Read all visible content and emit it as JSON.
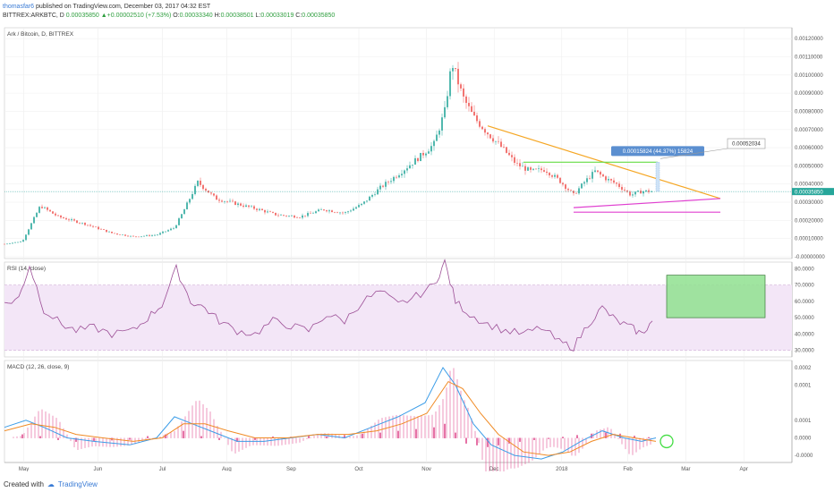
{
  "header": {
    "author": "thomasfar6",
    "published": "published on TradingView.com, December 03, 2017 04:32 EST",
    "symbol": "BITTREX:ARKBTC, D",
    "last": "0.00035850",
    "change": "+0.00002510 (+7.53%)",
    "o_label": "O:",
    "o": "0.00033340",
    "h_label": "H:",
    "h": "0.00038501",
    "l_label": "L:",
    "l": "0.00033019",
    "c_label": "C:",
    "c": "0.00035850"
  },
  "footer": {
    "created": "Created with",
    "brand": "TradingView"
  },
  "colors": {
    "up": "#26a69a",
    "down": "#ef5350",
    "triangle_top": "#f5a623",
    "triangle_bottom": "#e040d0",
    "resistance": "#66dd44",
    "rsi": "#9c4f96",
    "rsi_band": "#f3e6f7",
    "macd": "#3c9de8",
    "signal": "#f08a24",
    "hist": "#e05090"
  },
  "chart_data": [
    {
      "type": "candlestick",
      "title": "Ark / Bitcoin, D, BITTREX",
      "x_ticks": [
        "May",
        "Jun",
        "Jul",
        "Aug",
        "Sep",
        "Oct",
        "Nov",
        "Dec",
        "2018",
        "Feb",
        "Mar",
        "Apr"
      ],
      "y_ticks": [
        "0.00120000",
        "0.00110000",
        "0.00100000",
        "0.00090000",
        "0.00080000",
        "0.00070000",
        "0.00060000",
        "0.00050000",
        "0.00040000",
        "0.00030000",
        "0.00020000",
        "0.00010000",
        "-0.00000000"
      ],
      "ylim": [
        -1e-05,
        0.00126
      ],
      "last_price_label": "0.00035850",
      "last_price": 0.0003585,
      "price_range_label": "0.00015824 (44.37%) 15824",
      "callout_label": "0.00052034",
      "trend_path": [
        [
          0,
          7e-05
        ],
        [
          10,
          8.5e-05
        ],
        [
          20,
          0.00028
        ],
        [
          30,
          0.00022
        ],
        [
          45,
          0.00018
        ],
        [
          60,
          0.00013
        ],
        [
          72,
          0.00011
        ],
        [
          85,
          0.00012
        ],
        [
          95,
          0.00016
        ],
        [
          100,
          0.00025
        ],
        [
          108,
          0.00041
        ],
        [
          118,
          0.00032
        ],
        [
          130,
          0.00029
        ],
        [
          142,
          0.00026
        ],
        [
          152,
          0.00023
        ],
        [
          165,
          0.00022
        ],
        [
          178,
          0.00026
        ],
        [
          190,
          0.00024
        ],
        [
          200,
          0.00029
        ],
        [
          210,
          0.00038
        ],
        [
          222,
          0.00047
        ],
        [
          232,
          0.00055
        ],
        [
          240,
          0.00062
        ],
        [
          246,
          0.0008
        ],
        [
          250,
          0.00107
        ],
        [
          256,
          0.00088
        ],
        [
          262,
          0.00077
        ],
        [
          270,
          0.00068
        ],
        [
          278,
          0.0006
        ],
        [
          286,
          0.00051
        ],
        [
          294,
          0.00047
        ],
        [
          302,
          0.00048
        ],
        [
          310,
          0.00042
        ],
        [
          318,
          0.00034
        ],
        [
          324,
          0.00041
        ],
        [
          330,
          0.00047
        ],
        [
          336,
          0.00043
        ],
        [
          342,
          0.0004
        ],
        [
          350,
          0.00034
        ],
        [
          356,
          0.00036
        ]
      ],
      "triangle_top": [
        [
          270,
          0.00072
        ],
        [
          400,
          0.00032
        ]
      ],
      "triangle_bottom": [
        [
          318,
          0.00027
        ],
        [
          400,
          0.00032
        ]
      ],
      "support": [
        [
          318,
          0.000245
        ],
        [
          400,
          0.000245
        ]
      ],
      "resistance": [
        [
          290,
          0.00052
        ],
        [
          365,
          0.00052
        ]
      ]
    },
    {
      "type": "line",
      "title": "RSI (14, close)",
      "y_ticks": [
        "80.0000",
        "70.0000",
        "60.0000",
        "50.0000",
        "40.0000",
        "30.0000"
      ],
      "ylim": [
        26,
        84
      ],
      "band": [
        30,
        70
      ],
      "series": [
        {
          "values": [
            [
              0,
              58
            ],
            [
              8,
              62
            ],
            [
              14,
              82
            ],
            [
              22,
              55
            ],
            [
              32,
              46
            ],
            [
              40,
              42
            ],
            [
              50,
              44
            ],
            [
              60,
              40
            ],
            [
              72,
              42
            ],
            [
              80,
              50
            ],
            [
              88,
              58
            ],
            [
              96,
              80
            ],
            [
              104,
              60
            ],
            [
              112,
              56
            ],
            [
              120,
              48
            ],
            [
              130,
              42
            ],
            [
              140,
              40
            ],
            [
              150,
              48
            ],
            [
              160,
              45
            ],
            [
              170,
              42
            ],
            [
              180,
              52
            ],
            [
              190,
              48
            ],
            [
              200,
              60
            ],
            [
              210,
              66
            ],
            [
              220,
              58
            ],
            [
              230,
              63
            ],
            [
              240,
              70
            ],
            [
              246,
              84
            ],
            [
              252,
              60
            ],
            [
              260,
              52
            ],
            [
              270,
              46
            ],
            [
              280,
              42
            ],
            [
              290,
              40
            ],
            [
              300,
              44
            ],
            [
              310,
              35
            ],
            [
              318,
              32
            ],
            [
              326,
              46
            ],
            [
              334,
              56
            ],
            [
              342,
              48
            ],
            [
              350,
              44
            ],
            [
              356,
              40
            ],
            [
              362,
              48
            ]
          ]
        }
      ],
      "box": {
        "x": [
          370,
          425
        ],
        "y": [
          50,
          76
        ]
      }
    },
    {
      "type": "line",
      "title": "MACD (12, 26, close, 9)",
      "y_ticks": [
        "0.0002",
        "0.0001",
        "0.0001",
        "0.0000",
        "-0.0000"
      ],
      "ylim": [
        -7e-05,
        0.00022
      ],
      "series": [
        {
          "values": [
            [
              0,
              3e-05
            ],
            [
              12,
              5e-05
            ],
            [
              22,
              3e-05
            ],
            [
              35,
              0.0
            ],
            [
              50,
              -1e-05
            ],
            [
              70,
              -2e-05
            ],
            [
              85,
              0.0
            ],
            [
              95,
              6e-05
            ],
            [
              105,
              4e-05
            ],
            [
              115,
              2e-05
            ],
            [
              130,
              -1e-05
            ],
            [
              145,
              -1e-05
            ],
            [
              160,
              0.0
            ],
            [
              175,
              1e-05
            ],
            [
              190,
              0.0
            ],
            [
              205,
              3e-05
            ],
            [
              220,
              6e-05
            ],
            [
              235,
              0.0001
            ],
            [
              245,
              0.0002
            ],
            [
              252,
              0.00015
            ],
            [
              262,
              4e-05
            ],
            [
              272,
              -2e-05
            ],
            [
              285,
              -5e-05
            ],
            [
              300,
              -6e-05
            ],
            [
              312,
              -4e-05
            ],
            [
              322,
              -1e-05
            ],
            [
              334,
              2e-05
            ],
            [
              346,
              0.0
            ],
            [
              356,
              -1e-05
            ],
            [
              364,
              0.0
            ]
          ]
        },
        {
          "values": [
            [
              0,
              2e-05
            ],
            [
              15,
              4e-05
            ],
            [
              28,
              3e-05
            ],
            [
              40,
              1e-05
            ],
            [
              55,
              0.0
            ],
            [
              72,
              -1e-05
            ],
            [
              88,
              0.0
            ],
            [
              100,
              4e-05
            ],
            [
              112,
              4e-05
            ],
            [
              125,
              2e-05
            ],
            [
              140,
              0.0
            ],
            [
              158,
              0.0
            ],
            [
              175,
              1e-05
            ],
            [
              192,
              1e-05
            ],
            [
              208,
              2e-05
            ],
            [
              222,
              4e-05
            ],
            [
              236,
              7e-05
            ],
            [
              248,
              0.00016
            ],
            [
              256,
              0.00014
            ],
            [
              266,
              7e-05
            ],
            [
              276,
              1e-05
            ],
            [
              290,
              -4e-05
            ],
            [
              304,
              -5e-05
            ],
            [
              316,
              -4e-05
            ],
            [
              328,
              -1e-05
            ],
            [
              340,
              1e-05
            ],
            [
              352,
              0.0
            ],
            [
              364,
              -1e-05
            ]
          ]
        }
      ],
      "hist": [
        [
          10,
          1e-05
        ],
        [
          20,
          5e-06
        ],
        [
          30,
          -5e-06
        ],
        [
          40,
          -1e-05
        ],
        [
          50,
          -8e-06
        ],
        [
          60,
          -6e-06
        ],
        [
          70,
          -4e-06
        ],
        [
          80,
          5e-06
        ],
        [
          90,
          1e-05
        ],
        [
          100,
          2e-05
        ],
        [
          110,
          5e-06
        ],
        [
          120,
          -5e-06
        ],
        [
          130,
          -1e-05
        ],
        [
          140,
          -5e-06
        ],
        [
          150,
          4e-06
        ],
        [
          160,
          3e-06
        ],
        [
          170,
          6e-06
        ],
        [
          180,
          4e-06
        ],
        [
          190,
          8e-06
        ],
        [
          200,
          1.2e-05
        ],
        [
          210,
          1.5e-05
        ],
        [
          220,
          2e-05
        ],
        [
          230,
          2.5e-05
        ],
        [
          240,
          3e-05
        ],
        [
          246,
          4e-05
        ],
        [
          252,
          1.5e-05
        ],
        [
          258,
          -1.5e-05
        ],
        [
          264,
          -2e-05
        ],
        [
          270,
          -2.5e-05
        ],
        [
          276,
          -2e-05
        ],
        [
          282,
          -1.5e-05
        ],
        [
          288,
          -1e-05
        ],
        [
          296,
          -5e-06
        ],
        [
          304,
          -2e-06
        ],
        [
          312,
          3e-06
        ],
        [
          320,
          8e-06
        ],
        [
          328,
          1.2e-05
        ],
        [
          336,
          1.5e-05
        ],
        [
          344,
          1.2e-05
        ],
        [
          352,
          6e-06
        ],
        [
          360,
          2e-06
        ]
      ],
      "circle_at": [
        370,
        -1e-05
      ]
    }
  ]
}
